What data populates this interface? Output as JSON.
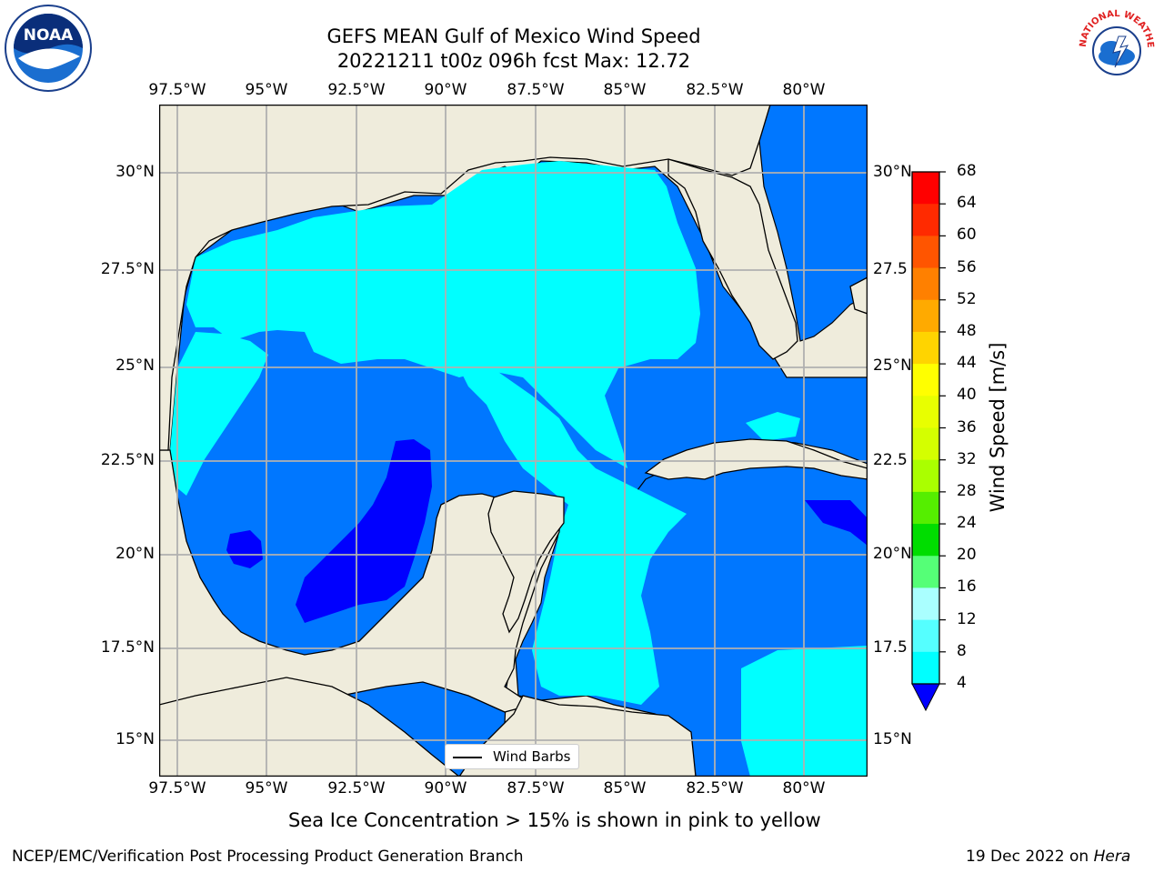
{
  "header": {
    "title_line1": "GEFS MEAN Gulf of Mexico Wind Speed",
    "title_line2": "20221211 t00z 096h fcst   Max: 12.72"
  },
  "logos": {
    "noaa_text": "NOAA",
    "nws_text": "NATIONAL WEATHER SERVICE"
  },
  "map": {
    "lon_ticks": [
      "97.5°W",
      "95°W",
      "92.5°W",
      "90°W",
      "87.5°W",
      "85°W",
      "82.5°W",
      "80°W"
    ],
    "lat_ticks_left": [
      "30°N",
      "27.5°N",
      "25°N",
      "22.5°N",
      "20°N",
      "17.5°N",
      "15°N"
    ],
    "lat_ticks_right": [
      "30°N",
      "27.5",
      "25°N",
      "22.5",
      "20°N",
      "17.5",
      "15°N"
    ],
    "legend_label": "Wind Barbs",
    "colors": {
      "land": "#efecdc",
      "band_4_8": "#0077ff",
      "band_8_12": "#00ffff",
      "below_4": "#0000ff"
    }
  },
  "colorbar": {
    "label": "Wind Speed [m/s]",
    "levels": [
      "68",
      "64",
      "60",
      "56",
      "52",
      "48",
      "44",
      "40",
      "36",
      "32",
      "28",
      "24",
      "20",
      "16",
      "12",
      "8",
      "4"
    ],
    "colors": [
      "#ff0000",
      "#ff2a00",
      "#ff5500",
      "#ff8000",
      "#ffaa00",
      "#ffd400",
      "#ffff00",
      "#e8ff00",
      "#d4ff00",
      "#aaff00",
      "#55ee00",
      "#00dd00",
      "#55ff77",
      "#aaffff",
      "#55ffff",
      "#00ffff",
      "#0077ff"
    ],
    "extend_color": "#0000ff"
  },
  "captions": {
    "sea_ice": "Sea Ice Concentration > 15% is shown in pink to yellow",
    "credit": "NCEP/EMC/Verification Post Processing Product Generation Branch",
    "date_prefix": "19 Dec 2022 on ",
    "machine": "Hera"
  }
}
